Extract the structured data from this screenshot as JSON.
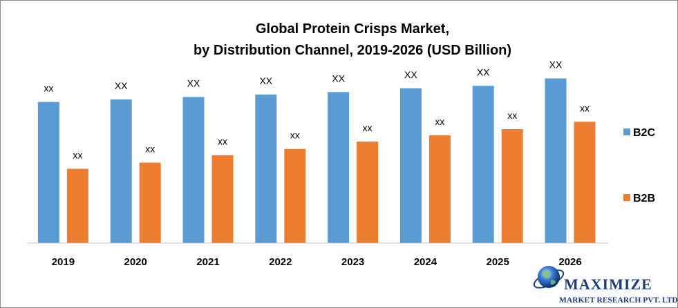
{
  "chart_data": {
    "type": "bar",
    "title": [
      "Global Protein Crisps Market,",
      "by Distribution Channel, 2019-2026 (USD Billion)"
    ],
    "categories": [
      "2019",
      "2020",
      "2021",
      "2022",
      "2023",
      "2024",
      "2025",
      "2026"
    ],
    "series": [
      {
        "name": "B2C",
        "color": "#5b9bd5",
        "values": [
          5.7,
          5.8,
          5.9,
          6.0,
          6.1,
          6.25,
          6.35,
          6.65
        ],
        "labels": [
          "xx",
          "XX",
          "XX",
          "XX",
          "XX",
          "XX",
          "XX",
          "XX"
        ]
      },
      {
        "name": "B2B",
        "color": "#ed7d31",
        "values": [
          3.0,
          3.25,
          3.55,
          3.8,
          4.1,
          4.35,
          4.6,
          4.9
        ],
        "labels": [
          "xx",
          "xx",
          "xx",
          "xx",
          "xx",
          "xx",
          "xx",
          "xx"
        ]
      }
    ],
    "legend": "right",
    "grid": false,
    "xlabel": "",
    "ylabel": "",
    "ylim": [
      0,
      7
    ]
  },
  "logo": {
    "name": "MAXIMIZE",
    "subtitle": "MARKET RESEARCH PVT. LTD."
  }
}
